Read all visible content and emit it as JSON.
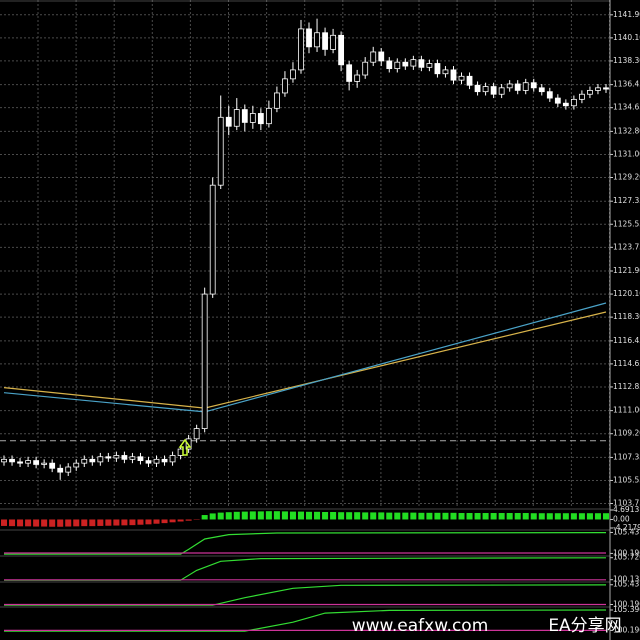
{
  "chart_data": [
    {
      "type": "candlestick",
      "open": [
        1107.0,
        1107.2,
        1107.0,
        1106.9,
        1107.1,
        1106.8,
        1106.9,
        1106.5,
        1106.2,
        1106.6,
        1106.9,
        1107.2,
        1107.0,
        1107.4,
        1107.3,
        1107.5,
        1107.2,
        1107.4,
        1107.1,
        1106.9,
        1107.2,
        1107.0,
        1107.5,
        1108.0,
        1108.8,
        1109.6,
        1120.1,
        1128.6,
        1133.9,
        1133.2,
        1134.5,
        1133.5,
        1134.2,
        1133.4,
        1134.6,
        1135.8,
        1136.9,
        1137.6,
        1140.8,
        1139.4,
        1140.5,
        1139.2,
        1140.3,
        1138.0,
        1136.7,
        1137.2,
        1138.2,
        1139.0,
        1138.3,
        1137.7,
        1138.2,
        1137.9,
        1138.4,
        1137.8,
        1138.1,
        1137.3,
        1137.6,
        1136.8,
        1137.1,
        1136.4,
        1135.9,
        1136.3,
        1135.7,
        1136.2,
        1136.5,
        1136.0,
        1136.6,
        1136.2,
        1135.9,
        1135.4,
        1135.0,
        1134.8,
        1135.3,
        1135.7,
        1136.0,
        1136.2
      ],
      "high": [
        1107.5,
        1107.5,
        1107.3,
        1107.4,
        1107.4,
        1107.2,
        1107.2,
        1106.8,
        1106.9,
        1107.2,
        1107.5,
        1107.5,
        1107.7,
        1107.7,
        1107.8,
        1107.8,
        1107.7,
        1107.7,
        1107.4,
        1107.5,
        1107.5,
        1107.8,
        1108.3,
        1109.1,
        1109.9,
        1120.6,
        1129.2,
        1135.6,
        1134.8,
        1135.4,
        1134.9,
        1134.8,
        1134.6,
        1135.2,
        1136.3,
        1137.5,
        1138.2,
        1141.5,
        1141.3,
        1141.6,
        1140.9,
        1140.8,
        1140.6,
        1138.3,
        1137.6,
        1138.6,
        1139.4,
        1139.3,
        1138.6,
        1138.5,
        1138.5,
        1138.7,
        1138.7,
        1138.4,
        1138.4,
        1137.9,
        1137.9,
        1137.4,
        1137.4,
        1136.7,
        1136.6,
        1136.6,
        1136.5,
        1136.8,
        1136.8,
        1136.9,
        1136.9,
        1136.5,
        1136.2,
        1135.7,
        1135.3,
        1135.6,
        1136.0,
        1136.3,
        1136.5,
        1136.5
      ],
      "low": [
        1106.7,
        1106.7,
        1106.6,
        1106.6,
        1106.5,
        1106.5,
        1106.2,
        1105.6,
        1105.9,
        1106.3,
        1106.6,
        1106.7,
        1106.7,
        1107.0,
        1107.0,
        1106.9,
        1106.9,
        1106.8,
        1106.6,
        1106.6,
        1106.7,
        1106.7,
        1107.2,
        1107.7,
        1108.5,
        1109.3,
        1119.8,
        1128.3,
        1132.5,
        1132.9,
        1132.8,
        1133.0,
        1132.9,
        1133.1,
        1134.3,
        1135.5,
        1136.6,
        1137.3,
        1138.9,
        1139.0,
        1138.7,
        1138.9,
        1137.5,
        1136.0,
        1136.2,
        1136.9,
        1137.9,
        1137.9,
        1137.4,
        1137.4,
        1137.6,
        1137.6,
        1137.5,
        1137.5,
        1137.0,
        1137.0,
        1136.5,
        1136.5,
        1136.1,
        1135.6,
        1135.6,
        1135.4,
        1135.4,
        1135.9,
        1135.7,
        1135.7,
        1135.9,
        1135.6,
        1135.1,
        1134.7,
        1134.5,
        1134.5,
        1135.0,
        1135.4,
        1135.7,
        1135.8
      ],
      "close": [
        1107.2,
        1107.0,
        1106.9,
        1107.1,
        1106.8,
        1106.9,
        1106.5,
        1106.2,
        1106.6,
        1106.9,
        1107.2,
        1107.0,
        1107.4,
        1107.3,
        1107.5,
        1107.2,
        1107.4,
        1107.1,
        1106.9,
        1107.2,
        1107.0,
        1107.5,
        1108.0,
        1108.8,
        1109.6,
        1120.1,
        1128.6,
        1133.9,
        1133.2,
        1134.5,
        1133.5,
        1134.2,
        1133.4,
        1134.6,
        1135.8,
        1136.9,
        1137.6,
        1140.8,
        1139.4,
        1140.5,
        1139.2,
        1140.3,
        1138.0,
        1136.7,
        1137.2,
        1138.2,
        1139.0,
        1138.3,
        1137.7,
        1138.2,
        1137.9,
        1138.4,
        1137.8,
        1138.1,
        1137.3,
        1137.6,
        1136.8,
        1137.1,
        1136.4,
        1135.9,
        1136.3,
        1135.7,
        1136.2,
        1136.5,
        1136.0,
        1136.6,
        1136.2,
        1135.9,
        1135.4,
        1135.0,
        1134.8,
        1135.3,
        1135.7,
        1136.0,
        1136.2,
        1136.1
      ],
      "up_color": "#000000",
      "down_color": "#ffffff",
      "lines": [
        {
          "color": "#d8b34a",
          "x": [
            0,
            25,
            75
          ],
          "values": [
            1112.8,
            1111.2,
            1118.7
          ]
        },
        {
          "color": "#4aa3c8",
          "x": [
            0,
            25,
            75
          ],
          "values": [
            1112.4,
            1110.9,
            1119.4
          ]
        }
      ],
      "hline": 1108.65,
      "ylim": [
        1103.4,
        1142.9
      ],
      "yticks": [
        {
          "value": 1141.9,
          "label": "1141.90"
        },
        {
          "value": 1140.1,
          "label": "1140.10"
        },
        {
          "value": 1138.3,
          "label": "1138.30"
        },
        1136.45,
        1134.65,
        {
          "value": 1132.8,
          "label": "1132.80"
        },
        {
          "value": 1131.0,
          "label": "1131.00"
        },
        {
          "value": 1129.2,
          "label": "1129.20"
        },
        1127.35,
        1125.55,
        1123.75,
        {
          "value": 1121.9,
          "label": "1121.90"
        },
        {
          "value": 1120.1,
          "label": "1120.10"
        },
        {
          "value": 1118.3,
          "label": "1118.30"
        },
        1116.45,
        1114.65,
        1112.85,
        {
          "value": 1111.0,
          "label": "1111.00"
        },
        {
          "value": 1109.2,
          "label": "1109.20"
        },
        1107.35,
        1105.55,
        1103.75
      ],
      "grid": true
    },
    {
      "type": "histogram-bars",
      "values": [
        -3.2,
        -3.3,
        -3.4,
        -3.4,
        -3.5,
        -3.5,
        -3.6,
        -3.6,
        -3.5,
        -3.4,
        -3.3,
        -3.3,
        -3.2,
        -3.1,
        -3.0,
        -2.9,
        -2.8,
        -2.6,
        -2.4,
        -2.1,
        -1.8,
        -1.4,
        -1.0,
        -0.6,
        -0.2,
        2.2,
        3.0,
        3.4,
        3.6,
        3.8,
        3.9,
        4.0,
        4.0,
        4.1,
        4.1,
        4.0,
        3.9,
        3.9,
        3.8,
        3.8,
        3.7,
        3.7,
        3.6,
        3.6,
        3.6,
        3.5,
        3.5,
        3.5,
        3.4,
        3.4,
        3.4,
        3.4,
        3.3,
        3.3,
        3.3,
        3.3,
        3.3,
        3.2,
        3.2,
        3.2,
        3.2,
        3.2,
        3.2,
        3.2,
        3.2,
        3.2,
        3.1,
        3.1,
        3.1,
        3.1,
        3.1,
        3.1,
        3.1,
        3.1,
        3.1,
        3.1
      ],
      "up_color": "#22dd22",
      "down_color": "#cc2222",
      "ylim": [
        -4.2179,
        4.6913
      ],
      "yticks": [
        4.6913,
        {
          "value": 0,
          "label": "0.00"
        },
        -4.2179
      ]
    },
    {
      "type": "line",
      "ylim": [
        99.8,
        105.8
      ],
      "yticks": [
        105.4379,
        100.1966
      ],
      "series": [
        {
          "color": "#33dd33",
          "x": [
            0,
            22,
            23,
            25,
            28,
            34,
            75
          ],
          "values": [
            100.0,
            100.0,
            101.2,
            103.8,
            104.9,
            105.3,
            105.4
          ]
        },
        {
          "color": "#cc3399",
          "x": [
            0,
            75
          ],
          "values": [
            100.3,
            100.3
          ]
        }
      ]
    },
    {
      "type": "line",
      "ylim": [
        99.8,
        105.9
      ],
      "yticks": [
        {
          "value": 105.72,
          "label": "105.7200"
        },
        100.1334
      ],
      "series": [
        {
          "color": "#33dd33",
          "x": [
            0,
            22,
            24,
            27,
            32,
            75
          ],
          "values": [
            100.0,
            100.0,
            102.5,
            104.8,
            105.5,
            105.7
          ]
        },
        {
          "color": "#cc3399",
          "x": [
            0,
            75
          ],
          "values": [
            100.1,
            100.1
          ]
        }
      ]
    },
    {
      "type": "line",
      "ylim": [
        99.8,
        105.9
      ],
      "yticks": [
        105.4379,
        100.1966
      ],
      "series": [
        {
          "color": "#33dd33",
          "x": [
            0,
            26,
            30,
            36,
            42,
            75
          ],
          "values": [
            100.0,
            100.0,
            102.0,
            104.5,
            105.3,
            105.4
          ]
        },
        {
          "color": "#cc3399",
          "x": [
            0,
            75
          ],
          "values": [
            100.2,
            100.2
          ]
        }
      ]
    },
    {
      "type": "line",
      "ylim": [
        99.8,
        105.9
      ],
      "yticks": [
        105.3966,
        100.1966
      ],
      "series": [
        {
          "color": "#33dd33",
          "x": [
            0,
            30,
            36,
            40,
            48,
            75
          ],
          "values": [
            100.0,
            100.0,
            102.3,
            104.6,
            105.3,
            105.4
          ]
        },
        {
          "color": "#cc3399",
          "x": [
            0,
            75
          ],
          "values": [
            100.2,
            100.2
          ]
        }
      ]
    }
  ],
  "watermark": {
    "site": "www.eafxw.com",
    "name": "EA分享网"
  }
}
